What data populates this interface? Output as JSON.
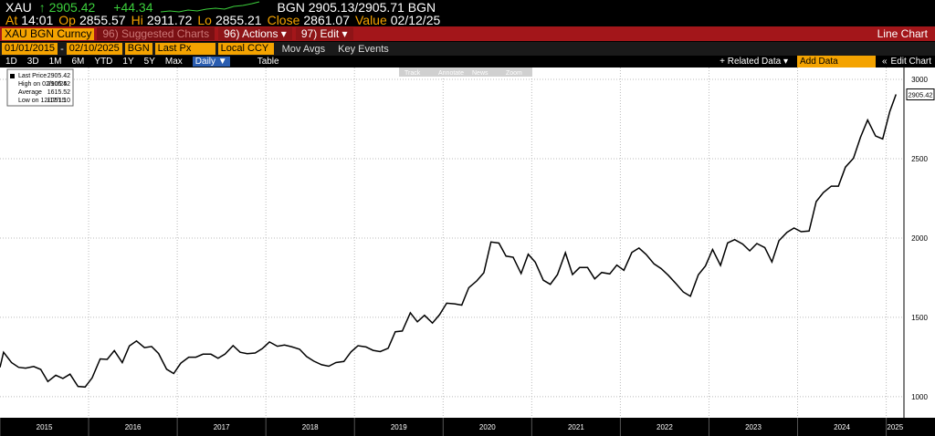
{
  "header": {
    "ticker": "XAU",
    "price": "↑ 2905.42",
    "change": "+44.34",
    "bid_ask": "BGN 2905.13/2905.71 BGN",
    "details": [
      [
        "At",
        "14:01"
      ],
      [
        "Op",
        "2855.57"
      ],
      [
        "Hi",
        "2911.72"
      ],
      [
        "Lo",
        "2855.21"
      ],
      [
        "Close",
        "2861.07"
      ],
      [
        "Value",
        "02/12/25"
      ]
    ]
  },
  "menu": {
    "security": "XAU BGN Curncy",
    "items": [
      "96) Suggested Charts",
      "96) Actions ▾",
      "97) Edit ▾"
    ],
    "chart_type": "Line Chart"
  },
  "toolbar": {
    "start": "01/01/2015",
    "separator": "-",
    "end": "02/10/2025",
    "source": "BGN",
    "field": "Last Px",
    "currency": "Local CCY",
    "options": [
      "Mov Avgs",
      "Key Events"
    ]
  },
  "periods": {
    "items": [
      "1D",
      "3D",
      "1M",
      "6M",
      "YTD",
      "1Y",
      "5Y",
      "Max"
    ],
    "frequency": "Daily ▼",
    "table": "Table",
    "related": "+ Related Data ▾",
    "add": "Add Data",
    "edit": "Edit Chart"
  },
  "tools": [
    "Track",
    "Annotate",
    "News",
    "Zoom"
  ],
  "legend_stats": [
    {
      "label": "High on 02/10/25",
      "value": "2905.42"
    },
    {
      "label": "Average",
      "value": "1615.52"
    },
    {
      "label": "Low on 12/17/15",
      "value": "1051.10"
    }
  ],
  "chart_data": {
    "type": "line",
    "x": [
      2015.0,
      2015.04,
      2015.13,
      2015.21,
      2015.29,
      2015.38,
      2015.46,
      2015.54,
      2015.63,
      2015.71,
      2015.79,
      2015.88,
      2015.96,
      2016.04,
      2016.13,
      2016.21,
      2016.29,
      2016.38,
      2016.46,
      2016.54,
      2016.63,
      2016.71,
      2016.79,
      2016.88,
      2016.96,
      2017.04,
      2017.13,
      2017.21,
      2017.29,
      2017.38,
      2017.46,
      2017.54,
      2017.63,
      2017.71,
      2017.79,
      2017.88,
      2017.96,
      2018.04,
      2018.13,
      2018.21,
      2018.29,
      2018.38,
      2018.46,
      2018.54,
      2018.63,
      2018.71,
      2018.79,
      2018.88,
      2018.96,
      2019.04,
      2019.13,
      2019.21,
      2019.29,
      2019.38,
      2019.46,
      2019.54,
      2019.63,
      2019.71,
      2019.79,
      2019.88,
      2019.96,
      2020.04,
      2020.13,
      2020.21,
      2020.29,
      2020.38,
      2020.46,
      2020.54,
      2020.63,
      2020.71,
      2020.79,
      2020.88,
      2020.96,
      2021.04,
      2021.13,
      2021.21,
      2021.29,
      2021.38,
      2021.46,
      2021.54,
      2021.63,
      2021.71,
      2021.79,
      2021.88,
      2021.96,
      2022.04,
      2022.13,
      2022.21,
      2022.29,
      2022.38,
      2022.46,
      2022.54,
      2022.63,
      2022.71,
      2022.79,
      2022.88,
      2022.96,
      2023.04,
      2023.13,
      2023.21,
      2023.29,
      2023.38,
      2023.46,
      2023.54,
      2023.63,
      2023.71,
      2023.79,
      2023.88,
      2023.96,
      2024.04,
      2024.13,
      2024.21,
      2024.29,
      2024.38,
      2024.46,
      2024.54,
      2024.63,
      2024.71,
      2024.79,
      2024.88,
      2024.96,
      2025.04,
      2025.11
    ],
    "series": [
      {
        "name": "Last Price",
        "color": "#000000",
        "values": [
          1185,
          1280,
          1215,
          1185,
          1180,
          1190,
          1172,
          1095,
          1135,
          1115,
          1142,
          1065,
          1061,
          1118,
          1238,
          1235,
          1290,
          1215,
          1320,
          1351,
          1309,
          1316,
          1272,
          1173,
          1146,
          1211,
          1249,
          1249,
          1268,
          1268,
          1242,
          1269,
          1322,
          1280,
          1271,
          1275,
          1303,
          1345,
          1318,
          1325,
          1315,
          1299,
          1253,
          1224,
          1201,
          1192,
          1215,
          1222,
          1282,
          1321,
          1313,
          1292,
          1284,
          1305,
          1409,
          1414,
          1529,
          1472,
          1513,
          1464,
          1517,
          1589,
          1585,
          1577,
          1687,
          1730,
          1781,
          1975,
          1968,
          1886,
          1879,
          1776,
          1898,
          1848,
          1734,
          1708,
          1769,
          1907,
          1770,
          1814,
          1814,
          1743,
          1783,
          1774,
          1829,
          1797,
          1909,
          1937,
          1897,
          1837,
          1807,
          1766,
          1711,
          1660,
          1633,
          1768,
          1824,
          1928,
          1827,
          1969,
          1990,
          1962,
          1919,
          1965,
          1940,
          1849,
          1983,
          2036,
          2063,
          2040,
          2044,
          2230,
          2286,
          2327,
          2327,
          2447,
          2503,
          2635,
          2744,
          2643,
          2625,
          2798,
          2905.42
        ]
      }
    ],
    "xlim": [
      2015,
      2025.2
    ],
    "xticks": [
      {
        "value": 2015,
        "label": "2015"
      },
      {
        "value": 2016,
        "label": "2016"
      },
      {
        "value": 2017,
        "label": "2017"
      },
      {
        "value": 2018,
        "label": "2018"
      },
      {
        "value": 2019,
        "label": "2019"
      },
      {
        "value": 2020,
        "label": "2020"
      },
      {
        "value": 2021,
        "label": "2021"
      },
      {
        "value": 2022,
        "label": "2022"
      },
      {
        "value": 2023,
        "label": "2023"
      },
      {
        "value": 2024,
        "label": "2024"
      },
      {
        "value": 2025,
        "label": "2025"
      }
    ],
    "ylim": [
      867,
      3075
    ],
    "yticks": [
      1000,
      1500,
      2000,
      2500,
      3000
    ],
    "grid": true
  }
}
